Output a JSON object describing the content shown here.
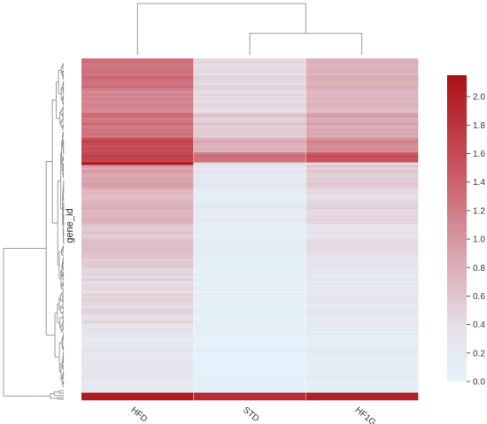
{
  "chart_data": {
    "type": "heatmap",
    "title": "",
    "ylabel": "gene_id",
    "columns": [
      "HFD",
      "STD",
      "HF1G"
    ],
    "column_dendrogram": {
      "leaf_order": [
        "HFD",
        "STD",
        "HF1G"
      ],
      "merges": [
        {
          "left": "STD",
          "right": "HF1G",
          "height": 0.8
        },
        {
          "left": "HFD",
          "right": "STD+HF1G",
          "height": 1.9
        }
      ]
    },
    "row_dendrogram": true,
    "color_scale": {
      "min": 0.0,
      "max": 2.15,
      "stops": [
        {
          "value": 0.0,
          "color": "#e4f2fb"
        },
        {
          "value": 0.35,
          "color": "#e6e3ea"
        },
        {
          "value": 0.9,
          "color": "#d9a3ad"
        },
        {
          "value": 1.5,
          "color": "#c85560"
        },
        {
          "value": 2.15,
          "color": "#ac1016"
        }
      ],
      "ticks": [
        0.0,
        0.2,
        0.4,
        0.6,
        0.8,
        1.0,
        1.2,
        1.4,
        1.6,
        1.8,
        2.0
      ],
      "tick_labels": [
        "0.0",
        "0.2",
        "0.4",
        "0.6",
        "0.8",
        "1.0",
        "1.2",
        "1.4",
        "1.6",
        "1.8",
        "2.0"
      ]
    },
    "row_blocks": [
      {
        "rows": 12,
        "values": [
          1.3,
          0.45,
          0.8
        ]
      },
      {
        "rows": 10,
        "values": [
          1.15,
          0.45,
          0.75
        ]
      },
      {
        "rows": 10,
        "values": [
          1.25,
          0.55,
          0.85
        ]
      },
      {
        "rows": 6,
        "values": [
          1.6,
          0.8,
          1.1
        ]
      },
      {
        "rows": 4,
        "values": [
          1.7,
          1.3,
          1.55
        ]
      },
      {
        "rows": 1,
        "values": [
          2.1,
          0.5,
          0.5
        ]
      },
      {
        "rows": 10,
        "values": [
          0.9,
          0.25,
          0.55
        ]
      },
      {
        "rows": 14,
        "values": [
          0.75,
          0.15,
          0.45
        ]
      },
      {
        "rows": 18,
        "values": [
          0.6,
          0.08,
          0.35
        ]
      },
      {
        "rows": 22,
        "values": [
          0.45,
          0.05,
          0.25
        ]
      },
      {
        "rows": 28,
        "values": [
          0.3,
          0.03,
          0.15
        ]
      },
      {
        "rows": 3,
        "values": [
          2.05,
          1.9,
          2.0
        ]
      }
    ]
  }
}
